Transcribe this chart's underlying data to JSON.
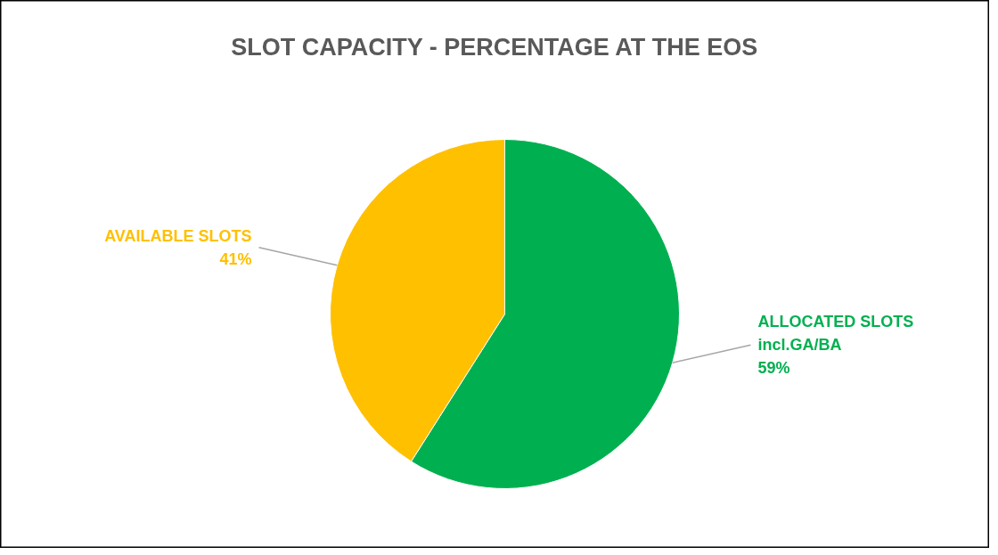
{
  "chart_data": {
    "type": "pie",
    "title": "SLOT CAPACITY - PERCENTAGE AT THE EOS",
    "categories": [
      "ALLOCATED SLOTS incl.GA/BA",
      "AVAILABLE SLOTS"
    ],
    "values": [
      59,
      41
    ],
    "colors": [
      "#00b050",
      "#ffc000"
    ],
    "value_labels": [
      "59%",
      "41%"
    ]
  }
}
